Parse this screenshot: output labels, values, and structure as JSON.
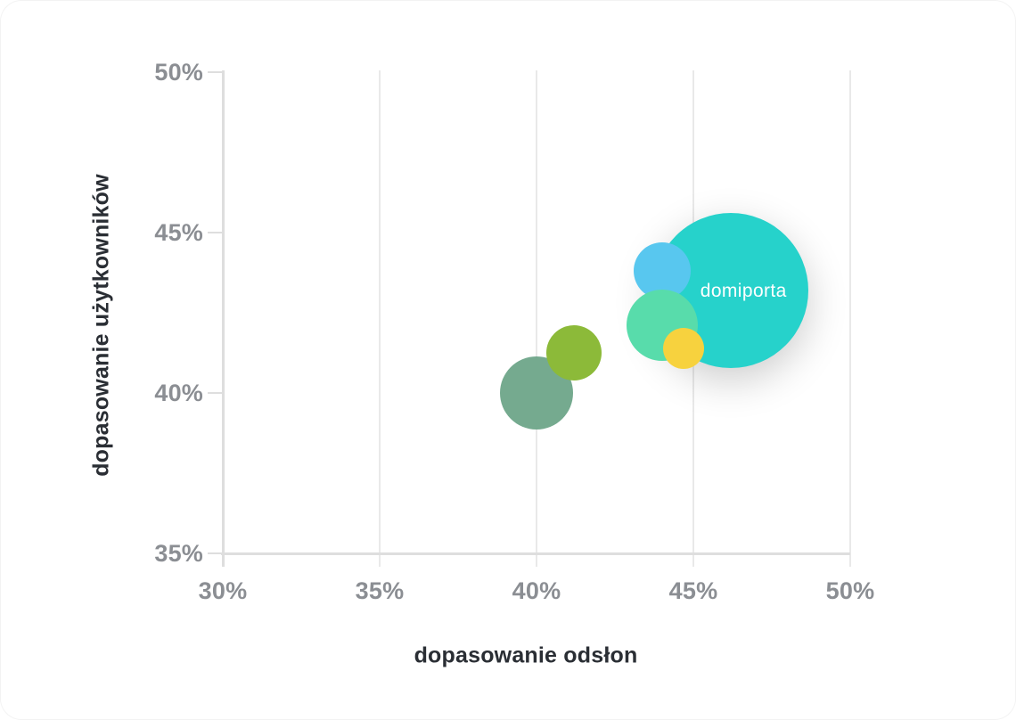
{
  "chart_data": {
    "type": "scatter",
    "variant": "bubble",
    "title": "",
    "xlabel": "dopasowanie odsłon",
    "ylabel": "dopasowanie użytkowników",
    "xlim": [
      30,
      50
    ],
    "ylim": [
      35,
      50
    ],
    "x_ticks": [
      30,
      35,
      40,
      45,
      50
    ],
    "x_tick_labels": [
      "30%",
      "35%",
      "40%",
      "45%",
      "50%"
    ],
    "y_ticks": [
      50,
      45,
      40,
      35
    ],
    "y_tick_labels": [
      "50%",
      "45%",
      "40%",
      "35%"
    ],
    "grid": "vertical gridlines only",
    "legend": "none",
    "series": [
      {
        "label": "",
        "x": 40.0,
        "y": 40.0,
        "radius_px": 41,
        "color": "#75aa8f"
      },
      {
        "label": "",
        "x": 41.2,
        "y": 41.25,
        "radius_px": 31,
        "color": "#8cba39"
      },
      {
        "label": "domiporta",
        "x": 46.2,
        "y": 43.2,
        "radius_px": 87,
        "color": "#26d2cb",
        "shadow": true,
        "label_color": "#ffffff"
      },
      {
        "label": "",
        "x": 44.0,
        "y": 43.8,
        "radius_px": 32,
        "color": "#58c7ef"
      },
      {
        "label": "",
        "x": 44.0,
        "y": 42.1,
        "radius_px": 40,
        "color": "#58dcab"
      },
      {
        "label": "",
        "x": 44.7,
        "y": 41.4,
        "radius_px": 23,
        "color": "#f7d23e"
      }
    ]
  },
  "colors": {
    "tick_label": "#8b8e93",
    "axis_title": "#2a2e34",
    "axis_line": "#dedede",
    "gridline": "#e9e9e9",
    "bubble_label": "#ffffff",
    "card_bg": "#ffffff"
  }
}
